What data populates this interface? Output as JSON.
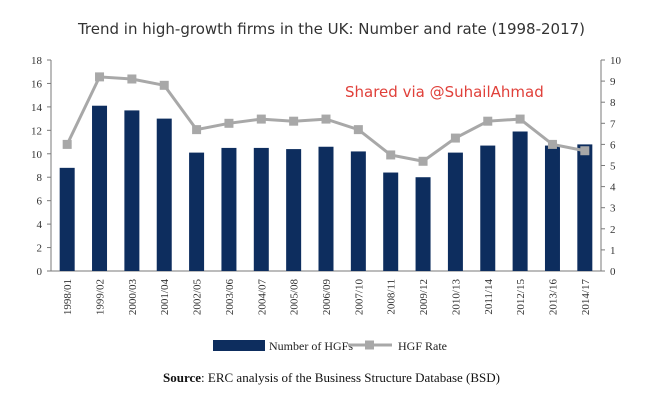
{
  "colors": {
    "bar": "#0d2d5e",
    "line": "#a8a8a8",
    "axis": "#7a7a7a",
    "text": "#333333",
    "watermark": "#e0403a"
  },
  "watermark": "Shared via @SuhailAhmad",
  "source": {
    "label": "Source",
    "text": ": ERC analysis of the Business Structure Database (BSD)"
  },
  "chart_data": {
    "type": "bar",
    "title": "Trend in high-growth firms in the UK: Number and rate (1998-2017)",
    "categories": [
      "1998/01",
      "1999/02",
      "2000/03",
      "2001/04",
      "2002/05",
      "2003/06",
      "2004/07",
      "2005/08",
      "2006/09",
      "2007/10",
      "2008/11",
      "2009/12",
      "2010/13",
      "2011/14",
      "2012/15",
      "2013/16",
      "2014/17"
    ],
    "series": [
      {
        "name": "Number of HGFs",
        "type": "bar",
        "axis": "left",
        "values": [
          8.8,
          14.1,
          13.7,
          13.0,
          10.1,
          10.5,
          10.5,
          10.4,
          10.6,
          10.2,
          8.4,
          8.0,
          10.1,
          10.7,
          11.9,
          10.7,
          10.8
        ]
      },
      {
        "name": "HGF Rate",
        "type": "line",
        "axis": "right",
        "values": [
          6.0,
          9.2,
          9.1,
          8.8,
          6.7,
          7.0,
          7.2,
          7.1,
          7.2,
          6.7,
          5.5,
          5.2,
          6.3,
          7.1,
          7.2,
          6.0,
          5.7
        ]
      }
    ],
    "y_left": {
      "min": 0,
      "max": 18,
      "ticks": [
        "0",
        "2",
        "4",
        "6",
        "8",
        "10",
        "12",
        "14",
        "16",
        "18"
      ]
    },
    "y_right": {
      "min": 0,
      "max": 10,
      "ticks": [
        "0",
        "1",
        "2",
        "3",
        "4",
        "5",
        "6",
        "7",
        "8",
        "9",
        "10"
      ]
    },
    "grid": false,
    "legend_position": "bottom"
  }
}
